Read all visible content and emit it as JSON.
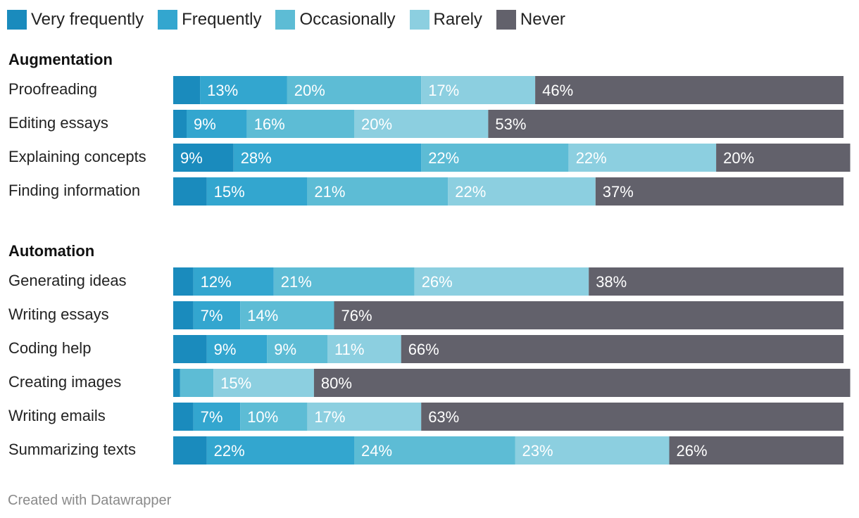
{
  "chart_data": {
    "type": "bar",
    "orientation": "horizontal",
    "stacked": true,
    "legend_position": "top",
    "grid": false,
    "series": [
      {
        "name": "Very frequently",
        "color": "#1a8bbd"
      },
      {
        "name": "Frequently",
        "color": "#33a6cf"
      },
      {
        "name": "Occasionally",
        "color": "#5dbcd5"
      },
      {
        "name": "Rarely",
        "color": "#8ccfe0"
      },
      {
        "name": "Never",
        "color": "#62616b"
      }
    ],
    "groups": [
      {
        "title": "Augmentation",
        "rows": [
          {
            "label": "Proofreading",
            "values": [
              4,
              13,
              20,
              17,
              46
            ],
            "labels": [
              "",
              "13%",
              "20%",
              "17%",
              "46%"
            ]
          },
          {
            "label": "Editing essays",
            "values": [
              2,
              9,
              16,
              20,
              53
            ],
            "labels": [
              "",
              "9%",
              "16%",
              "20%",
              "53%"
            ]
          },
          {
            "label": "Explaining concepts",
            "values": [
              9,
              28,
              22,
              22,
              20
            ],
            "labels": [
              "9%",
              "28%",
              "22%",
              "22%",
              "20%"
            ]
          },
          {
            "label": "Finding information",
            "values": [
              5,
              15,
              21,
              22,
              37
            ],
            "labels": [
              "",
              "15%",
              "21%",
              "22%",
              "37%"
            ]
          }
        ]
      },
      {
        "title": "Automation",
        "rows": [
          {
            "label": "Generating ideas",
            "values": [
              3,
              12,
              21,
              26,
              38
            ],
            "labels": [
              "",
              "12%",
              "21%",
              "26%",
              "38%"
            ]
          },
          {
            "label": "Writing essays",
            "values": [
              3,
              7,
              14,
              0,
              76
            ],
            "labels": [
              "",
              "7%",
              "14%",
              "",
              "76%"
            ]
          },
          {
            "label": "Coding help",
            "values": [
              5,
              9,
              9,
              11,
              66
            ],
            "labels": [
              "",
              "9%",
              "9%",
              "11%",
              "66%"
            ]
          },
          {
            "label": "Creating images",
            "values": [
              1,
              0,
              5,
              15,
              80
            ],
            "labels": [
              "",
              "",
              "",
              "15%",
              "80%"
            ]
          },
          {
            "label": "Writing emails",
            "values": [
              3,
              7,
              10,
              17,
              63
            ],
            "labels": [
              "",
              "7%",
              "10%",
              "17%",
              "63%"
            ]
          },
          {
            "label": "Summarizing texts",
            "values": [
              5,
              22,
              24,
              23,
              26
            ],
            "labels": [
              "",
              "22%",
              "24%",
              "23%",
              "26%"
            ]
          }
        ]
      }
    ]
  },
  "footer": "Created with Datawrapper"
}
